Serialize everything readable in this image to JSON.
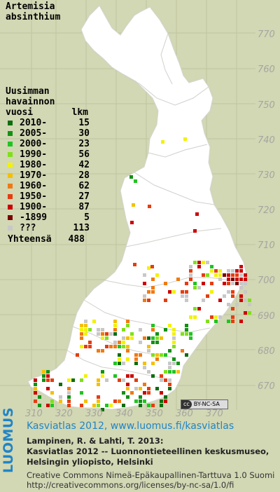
{
  "species": {
    "line1": "Artemisia",
    "line2": "absinthium"
  },
  "legend": {
    "title_lines": [
      "Uusimman",
      "havainnon"
    ],
    "col_year": "vuosi",
    "col_count": "lkm",
    "rows": [
      {
        "label": "2010-",
        "count": "15",
        "color": "#0d6e0d"
      },
      {
        "label": "2005-",
        "count": "30",
        "color": "#149114"
      },
      {
        "label": "2000-",
        "count": "23",
        "color": "#21c421"
      },
      {
        "label": "1990-",
        "count": "56",
        "color": "#80e01b"
      },
      {
        "label": "1980-",
        "count": "42",
        "color": "#f2f200"
      },
      {
        "label": "1970-",
        "count": "28",
        "color": "#f5c000"
      },
      {
        "label": "1960-",
        "count": "62",
        "color": "#f07a12"
      },
      {
        "label": "1950-",
        "count": "27",
        "color": "#e53d10"
      },
      {
        "label": "1900-",
        "count": "87",
        "color": "#cc0000"
      },
      {
        "label": "-1899",
        "count": "5",
        "color": "#7a0000"
      },
      {
        "label": "???",
        "count": "113",
        "color": "#c8c8c8"
      }
    ],
    "total_label": "Yhteensä",
    "total_count": "488"
  },
  "axes": {
    "y_labels": [
      "770",
      "760",
      "750",
      "740",
      "730",
      "720",
      "710",
      "700",
      "690",
      "680",
      "670"
    ],
    "x_labels": [
      "310",
      "320",
      "330",
      "340",
      "350",
      "360",
      "370"
    ]
  },
  "license_badge": {
    "cc": "cc",
    "text": "BY-NC-SA"
  },
  "brand": "LUOMUS",
  "footer": {
    "link": "Kasviatlas 2012, www.luomus.fi/kasviatlas",
    "citation1": "Lampinen, R. & Lahti, T. 2013:",
    "citation2": "Kasviatlas 2012 -- Luonnontieteellinen keskusmuseo,",
    "citation3": "Helsingin yliopisto, Helsinki",
    "license1": "Creative Commons Nimeä-Epäkaupallinen-Tarttuva 1.0 Suomi",
    "license2": "http://creativecommons.org/licenses/by-nc-sa/1.0/fi"
  }
}
